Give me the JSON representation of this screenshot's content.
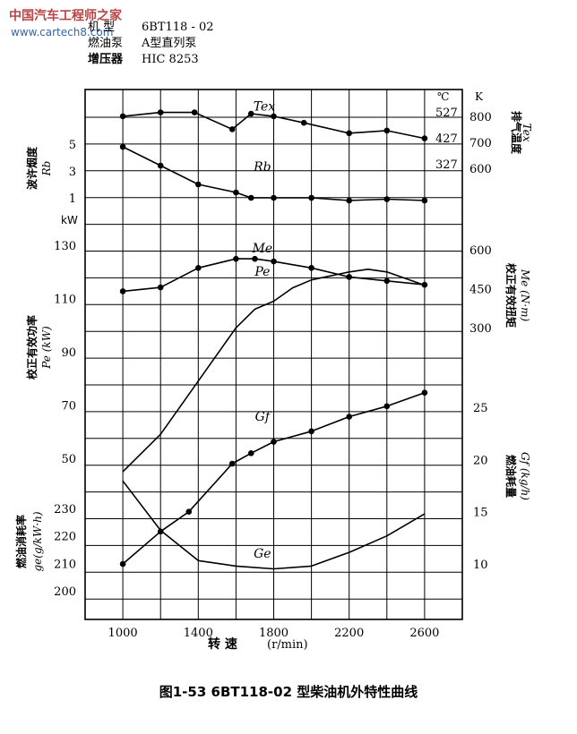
{
  "watermark": {
    "title": "中国汽车工程师之家",
    "url": "www.cartech8.com"
  },
  "header": {
    "model_label": "机 型",
    "model_value": "6BT118 - 02",
    "pump_label": "燃油泵",
    "pump_value": "A型直列泵",
    "turbo_label": "增压器",
    "turbo_value": "HIC 8253"
  },
  "left_axes": {
    "smoke_label": "波许烟度",
    "smoke_symbol": "Rb",
    "power_unit": "kW",
    "power_label": "校正有效功率",
    "power_symbol": "Pe (kW)",
    "ge_label": "燃油消耗率",
    "ge_symbol": "ge(g/kW·h)"
  },
  "right_axes": {
    "celsius_unit": "℃",
    "kelvin_unit": "K",
    "tex_label": "排气温度",
    "tex_symbol": "Tex",
    "me_label": "校正有效扭矩",
    "me_symbol": "Me (N·m)",
    "gf_label": "燃油耗量",
    "gf_symbol": "Gf (kg/h)"
  },
  "chart_data": {
    "type": "line",
    "title": "图1-53 6BT118-02 型柴油机外特性曲线",
    "xlabel": "转 速",
    "xunit": "(r/min)",
    "xlim": [
      800,
      2800
    ],
    "x_ticks": [
      1000,
      1400,
      1800,
      2200,
      2600
    ],
    "y_ticks": {
      "rb": [
        "5",
        "3",
        "1"
      ],
      "pe_unit": "kW",
      "pe": [
        "130",
        "110",
        "90",
        "70",
        "50"
      ],
      "ge": [
        "230",
        "220",
        "210",
        "200"
      ],
      "tex_c": [
        "527",
        "427",
        "327"
      ],
      "tex_k": [
        "800",
        "700",
        "600"
      ],
      "me": [
        "600",
        "450",
        "300"
      ],
      "gf": [
        "25",
        "20",
        "15",
        "10"
      ]
    },
    "series": [
      {
        "name": "Tex",
        "label": "Tex",
        "unit": "℃",
        "markers": true,
        "x": [
          1000,
          1200,
          1380,
          1580,
          1680,
          1800,
          1960,
          2200,
          2400,
          2600
        ],
        "values": [
          510,
          525,
          525,
          460,
          520,
          510,
          485,
          445,
          455,
          425
        ]
      },
      {
        "name": "Rb",
        "label": "Rb",
        "unit": "Bosch",
        "markers": true,
        "x": [
          1000,
          1200,
          1400,
          1600,
          1680,
          1800,
          2000,
          2200,
          2400,
          2600
        ],
        "values": [
          4.8,
          3.4,
          2.0,
          1.4,
          1.0,
          1.0,
          1.0,
          0.8,
          0.9,
          0.8
        ]
      },
      {
        "name": "Me",
        "label": "Me",
        "unit": "N·m",
        "markers": true,
        "x": [
          1000,
          1200,
          1400,
          1600,
          1700,
          1800,
          2000,
          2200,
          2400,
          2600
        ],
        "values": [
          440,
          455,
          530,
          565,
          565,
          555,
          530,
          495,
          480,
          465
        ]
      },
      {
        "name": "Pe",
        "label": "Pe",
        "unit": "kW",
        "markers": false,
        "x": [
          1000,
          1200,
          1400,
          1600,
          1700,
          1800,
          1900,
          2000,
          2200,
          2300,
          2400,
          2600
        ],
        "values": [
          45,
          59,
          79,
          99,
          106,
          109,
          114,
          117,
          120,
          121,
          120,
          115
        ]
      },
      {
        "name": "Gf",
        "label": "Gf",
        "unit": "kg/h",
        "markers": true,
        "x": [
          1000,
          1200,
          1350,
          1580,
          1680,
          1800,
          2000,
          2200,
          2400,
          2600
        ],
        "values": [
          10,
          13.1,
          15,
          19.6,
          20.6,
          21.7,
          22.7,
          24.1,
          25.1,
          26.4
        ]
      },
      {
        "name": "Ge",
        "label": "Ge",
        "unit": "g/kW·h",
        "markers": false,
        "x": [
          1000,
          1200,
          1400,
          1600,
          1800,
          2000,
          2200,
          2400,
          2600
        ],
        "values": [
          240,
          222,
          211,
          209,
          208,
          209,
          214,
          220,
          228
        ]
      }
    ]
  }
}
